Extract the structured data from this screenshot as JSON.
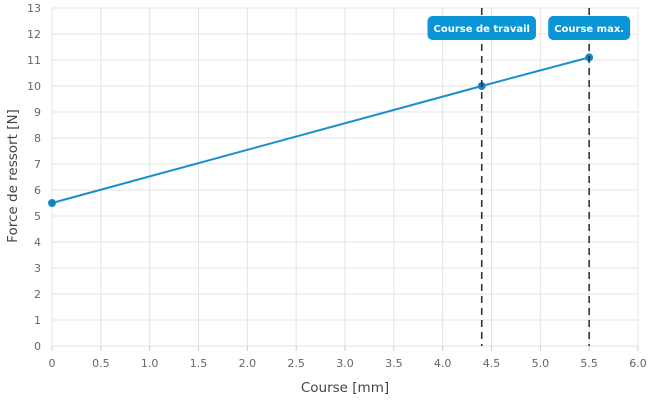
{
  "chart_data": {
    "type": "line",
    "title": "",
    "xlabel": "Course [mm]",
    "ylabel": "Force de ressort [N]",
    "xlim": [
      0,
      6
    ],
    "ylim": [
      0,
      13
    ],
    "x_ticks": [
      "0",
      "0.5",
      "1.0",
      "1.5",
      "2.0",
      "2.5",
      "3.0",
      "3.5",
      "4.0",
      "4.5",
      "5.0",
      "5.5",
      "6.0"
    ],
    "y_ticks": [
      "0",
      "1",
      "2",
      "3",
      "4",
      "5",
      "6",
      "7",
      "8",
      "9",
      "10",
      "11",
      "12",
      "13"
    ],
    "grid": true,
    "series": [
      {
        "color": "#1a8fcb",
        "points": [
          {
            "x": 0,
            "y": 5.5
          },
          {
            "x": 4.4,
            "y": 10.0
          },
          {
            "x": 5.5,
            "y": 11.1
          }
        ]
      }
    ],
    "markers": [
      {
        "label": "Course de travail",
        "x": 4.4
      },
      {
        "label": "Course max.",
        "x": 5.5
      }
    ],
    "colors": {
      "line": "#1a8fcb",
      "marker_fill": "#1a7fb5",
      "label_bg": "#0a95d6",
      "grid": "#e3e3e3",
      "dashed": "#333333"
    }
  }
}
